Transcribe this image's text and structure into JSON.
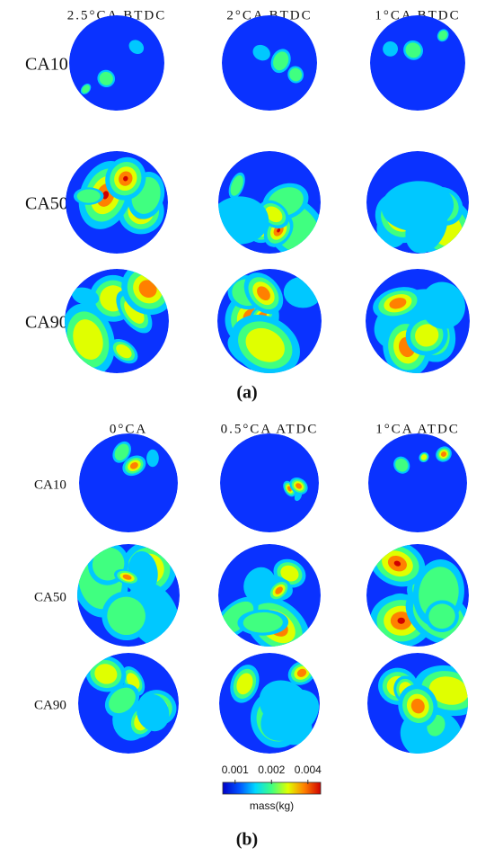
{
  "panels": [
    {
      "label": "(a)",
      "columns": [
        "2.5°CA BTDC",
        "2°CA BTDC",
        "1°CA BTDC"
      ],
      "rows": [
        "CA10",
        "CA50",
        "CA90"
      ]
    },
    {
      "label": "(b)",
      "columns": [
        "0°CA",
        "0.5°CA ATDC",
        "1°CA ATDC"
      ],
      "rows": [
        "CA10",
        "CA50",
        "CA90"
      ]
    }
  ],
  "colorbar": {
    "title": "mass(kg)",
    "ticks": [
      0.001,
      0.002,
      0.004
    ],
    "lim": [
      0.00079,
      0.0051
    ],
    "log": true,
    "colors": [
      "#0000c8",
      "#0050ff",
      "#00d8ff",
      "#40ff80",
      "#e0ff00",
      "#ff8000",
      "#d00000"
    ]
  }
}
